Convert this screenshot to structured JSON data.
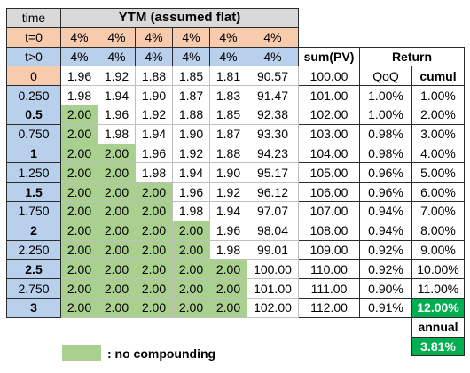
{
  "header": {
    "time_label": "time",
    "ytm_title": "YTM (assumed flat)",
    "sum_label": "sum(PV)",
    "return_label": "Return"
  },
  "rate_rows": [
    {
      "label": "t=0",
      "rates": [
        "4%",
        "4%",
        "4%",
        "4%",
        "4%",
        "4%"
      ]
    },
    {
      "label": "t>0",
      "rates": [
        "4%",
        "4%",
        "4%",
        "4%",
        "4%",
        "4%"
      ]
    }
  ],
  "col_headers": {
    "qoq": "QoQ",
    "cumul": "cumul"
  },
  "rows": [
    {
      "time": "0",
      "pv": [
        "1.96",
        "1.92",
        "1.88",
        "1.85",
        "1.81",
        "90.57"
      ],
      "sum": "100.00",
      "qoq": "",
      "cumul": ""
    },
    {
      "time": "0.250",
      "pv": [
        "1.98",
        "1.94",
        "1.90",
        "1.87",
        "1.83",
        "91.47"
      ],
      "sum": "101.00",
      "qoq": "1.00%",
      "cumul": "1.00%"
    },
    {
      "time": "0.5",
      "pv": [
        "2.00",
        "1.96",
        "1.92",
        "1.88",
        "1.85",
        "92.38"
      ],
      "sum": "102.00",
      "qoq": "1.00%",
      "cumul": "2.00%"
    },
    {
      "time": "0.750",
      "pv": [
        "2.00",
        "1.98",
        "1.94",
        "1.90",
        "1.87",
        "93.30"
      ],
      "sum": "103.00",
      "qoq": "0.98%",
      "cumul": "3.00%"
    },
    {
      "time": "1",
      "pv": [
        "2.00",
        "2.00",
        "1.96",
        "1.92",
        "1.88",
        "94.23"
      ],
      "sum": "104.00",
      "qoq": "0.98%",
      "cumul": "4.00%"
    },
    {
      "time": "1.250",
      "pv": [
        "2.00",
        "2.00",
        "1.98",
        "1.94",
        "1.90",
        "95.17"
      ],
      "sum": "105.00",
      "qoq": "0.96%",
      "cumul": "5.00%"
    },
    {
      "time": "1.5",
      "pv": [
        "2.00",
        "2.00",
        "2.00",
        "1.96",
        "1.92",
        "96.12"
      ],
      "sum": "106.00",
      "qoq": "0.96%",
      "cumul": "6.00%"
    },
    {
      "time": "1.750",
      "pv": [
        "2.00",
        "2.00",
        "2.00",
        "1.98",
        "1.94",
        "97.07"
      ],
      "sum": "107.00",
      "qoq": "0.94%",
      "cumul": "7.00%"
    },
    {
      "time": "2",
      "pv": [
        "2.00",
        "2.00",
        "2.00",
        "2.00",
        "1.96",
        "98.04"
      ],
      "sum": "108.00",
      "qoq": "0.94%",
      "cumul": "8.00%"
    },
    {
      "time": "2.250",
      "pv": [
        "2.00",
        "2.00",
        "2.00",
        "2.00",
        "1.98",
        "99.01"
      ],
      "sum": "109.00",
      "qoq": "0.92%",
      "cumul": "9.00%"
    },
    {
      "time": "2.5",
      "pv": [
        "2.00",
        "2.00",
        "2.00",
        "2.00",
        "2.00",
        "100.00"
      ],
      "sum": "110.00",
      "qoq": "0.92%",
      "cumul": "10.00%"
    },
    {
      "time": "2.750",
      "pv": [
        "2.00",
        "2.00",
        "2.00",
        "2.00",
        "2.00",
        "101.00"
      ],
      "sum": "111.00",
      "qoq": "0.90%",
      "cumul": "11.00%"
    },
    {
      "time": "3",
      "pv": [
        "2.00",
        "2.00",
        "2.00",
        "2.00",
        "2.00",
        "102.00"
      ],
      "sum": "112.00",
      "qoq": "0.91%",
      "cumul": "12.00%"
    }
  ],
  "annual": {
    "label": "annual",
    "value": "3.81%"
  },
  "legend": {
    "label": ": no compounding"
  },
  "colors": {
    "time_column": "#b8d0ec",
    "t0_row": "#f8cbad",
    "header": "#d9d9d9",
    "no_compounding": "#a9d08e",
    "highlight": "#00b050"
  }
}
